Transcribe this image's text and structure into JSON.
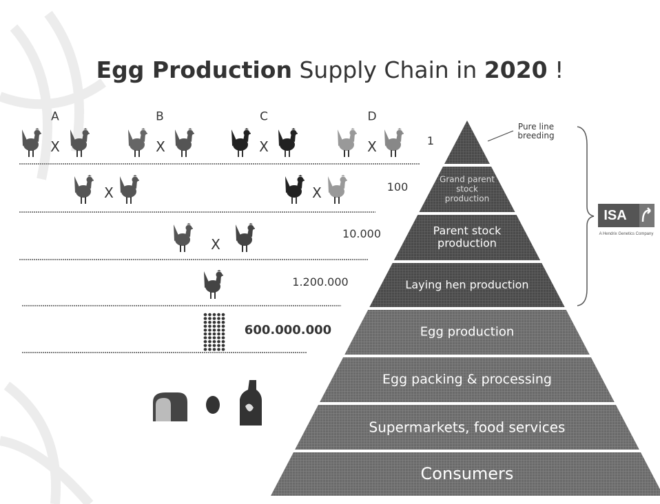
{
  "title": {
    "bold_lead": "Egg Production",
    "regular": "Supply Chain in",
    "bold_year": "2020",
    "end": "!"
  },
  "lines": [
    "A",
    "B",
    "C",
    "D"
  ],
  "cross_symbol": "X",
  "quantities": [
    "1",
    "100",
    "10.000",
    "1.200.000",
    "600.000.000"
  ],
  "pyramid": {
    "apex_note": "Pure line breeding",
    "levels": [
      "Grand parent stock production",
      "Parent stock production",
      "Laying hen production",
      "Egg production",
      "Egg packing & processing",
      "Supermarkets, food services",
      "Consumers"
    ]
  },
  "logo": {
    "name": "ISA",
    "tagline": "A Hendrix Genetics Company"
  }
}
